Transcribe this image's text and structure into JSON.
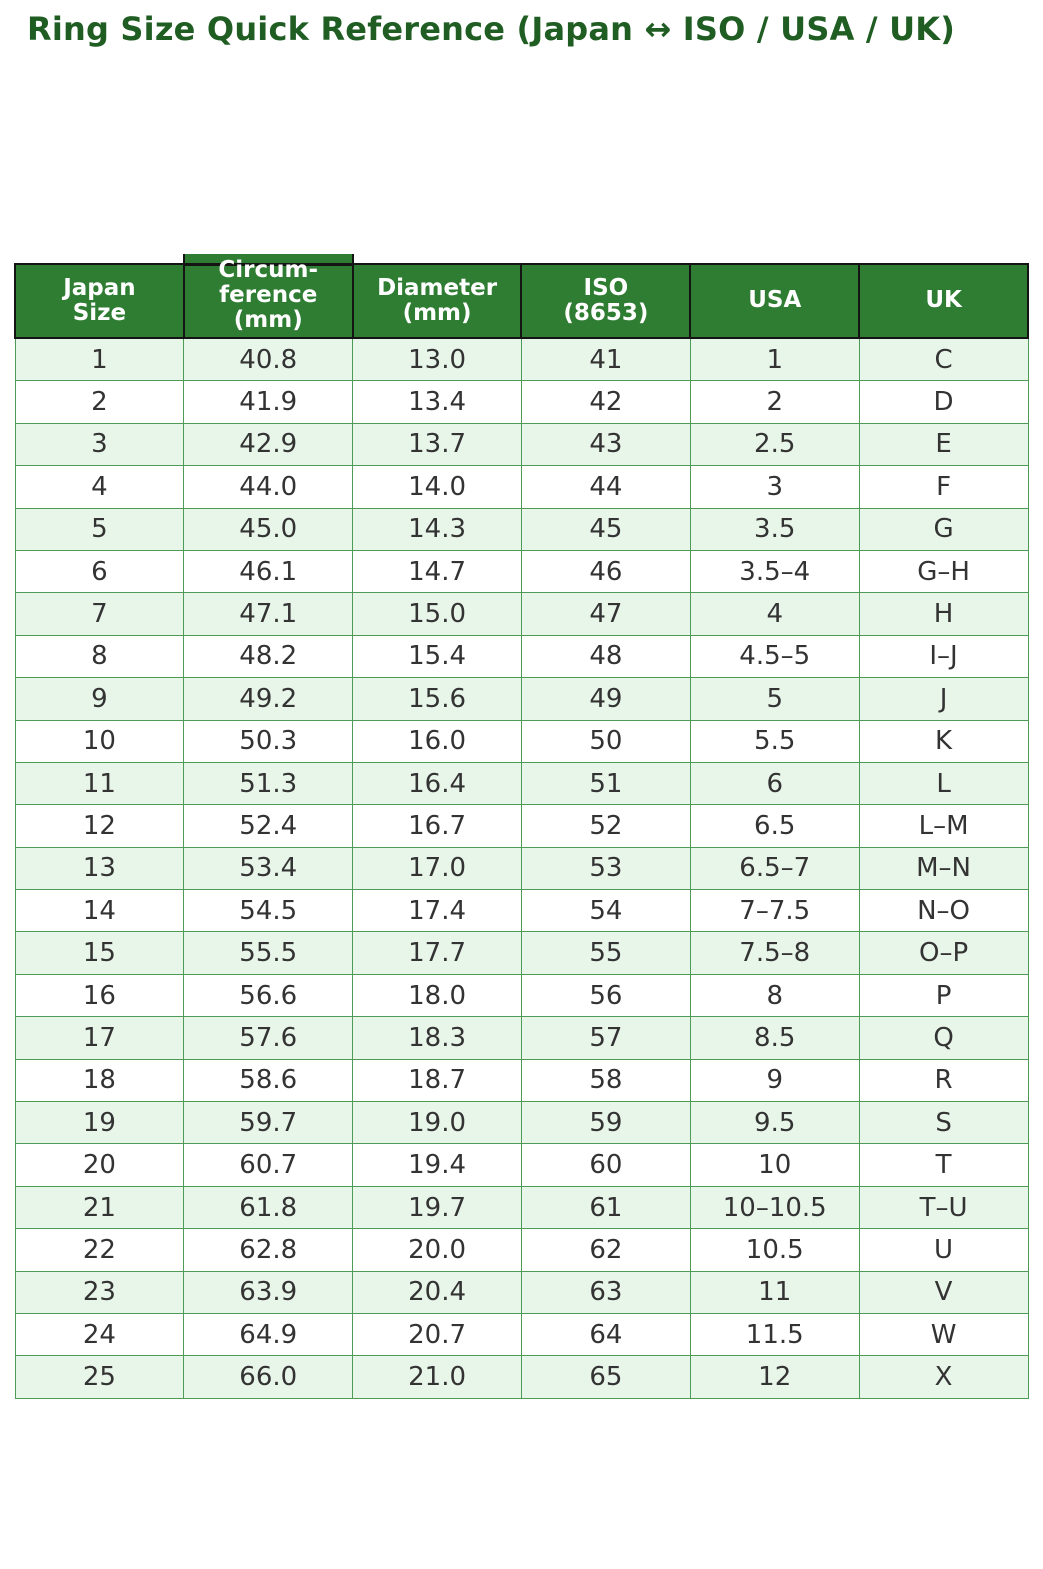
{
  "title": "Ring Size Quick Reference (Japan ↔ ISO / USA / UK)",
  "colors": {
    "title_text": "#1f5d23",
    "header_bg": "#2e7d32",
    "header_text": "#ffffff",
    "header_border": "#141414",
    "row_alt_bg": "#e8f5e9",
    "row_bg": "#ffffff",
    "cell_border": "#4e9b57",
    "cell_text": "#333333"
  },
  "table": {
    "headers": [
      "Japan\nSize",
      "Circum-\nference\n(mm)",
      "Diameter\n(mm)",
      "ISO\n(8653)",
      "USA",
      "UK"
    ],
    "rows": [
      [
        "1",
        "40.8",
        "13.0",
        "41",
        "1",
        "C"
      ],
      [
        "2",
        "41.9",
        "13.4",
        "42",
        "2",
        "D"
      ],
      [
        "3",
        "42.9",
        "13.7",
        "43",
        "2.5",
        "E"
      ],
      [
        "4",
        "44.0",
        "14.0",
        "44",
        "3",
        "F"
      ],
      [
        "5",
        "45.0",
        "14.3",
        "45",
        "3.5",
        "G"
      ],
      [
        "6",
        "46.1",
        "14.7",
        "46",
        "3.5–4",
        "G–H"
      ],
      [
        "7",
        "47.1",
        "15.0",
        "47",
        "4",
        "H"
      ],
      [
        "8",
        "48.2",
        "15.4",
        "48",
        "4.5–5",
        "I–J"
      ],
      [
        "9",
        "49.2",
        "15.6",
        "49",
        "5",
        "J"
      ],
      [
        "10",
        "50.3",
        "16.0",
        "50",
        "5.5",
        "K"
      ],
      [
        "11",
        "51.3",
        "16.4",
        "51",
        "6",
        "L"
      ],
      [
        "12",
        "52.4",
        "16.7",
        "52",
        "6.5",
        "L–M"
      ],
      [
        "13",
        "53.4",
        "17.0",
        "53",
        "6.5–7",
        "M–N"
      ],
      [
        "14",
        "54.5",
        "17.4",
        "54",
        "7–7.5",
        "N–O"
      ],
      [
        "15",
        "55.5",
        "17.7",
        "55",
        "7.5–8",
        "O–P"
      ],
      [
        "16",
        "56.6",
        "18.0",
        "56",
        "8",
        "P"
      ],
      [
        "17",
        "57.6",
        "18.3",
        "57",
        "8.5",
        "Q"
      ],
      [
        "18",
        "58.6",
        "18.7",
        "58",
        "9",
        "R"
      ],
      [
        "19",
        "59.7",
        "19.0",
        "59",
        "9.5",
        "S"
      ],
      [
        "20",
        "60.7",
        "19.4",
        "60",
        "10",
        "T"
      ],
      [
        "21",
        "61.8",
        "19.7",
        "61",
        "10–10.5",
        "T–U"
      ],
      [
        "22",
        "62.8",
        "20.0",
        "62",
        "10.5",
        "U"
      ],
      [
        "23",
        "63.9",
        "20.4",
        "63",
        "11",
        "V"
      ],
      [
        "24",
        "64.9",
        "20.7",
        "64",
        "11.5",
        "W"
      ],
      [
        "25",
        "66.0",
        "21.0",
        "65",
        "12",
        "X"
      ]
    ]
  },
  "chart_data": {
    "type": "table",
    "title": "Ring Size Quick Reference (Japan ↔ ISO / USA / UK)",
    "columns": [
      "Japan Size",
      "Circumference (mm)",
      "Diameter (mm)",
      "ISO (8653)",
      "USA",
      "UK"
    ],
    "rows": [
      [
        "1",
        "40.8",
        "13.0",
        "41",
        "1",
        "C"
      ],
      [
        "2",
        "41.9",
        "13.4",
        "42",
        "2",
        "D"
      ],
      [
        "3",
        "42.9",
        "13.7",
        "43",
        "2.5",
        "E"
      ],
      [
        "4",
        "44.0",
        "14.0",
        "44",
        "3",
        "F"
      ],
      [
        "5",
        "45.0",
        "14.3",
        "45",
        "3.5",
        "G"
      ],
      [
        "6",
        "46.1",
        "14.7",
        "46",
        "3.5–4",
        "G–H"
      ],
      [
        "7",
        "47.1",
        "15.0",
        "47",
        "4",
        "H"
      ],
      [
        "8",
        "48.2",
        "15.4",
        "48",
        "4.5–5",
        "I–J"
      ],
      [
        "9",
        "49.2",
        "15.6",
        "49",
        "5",
        "J"
      ],
      [
        "10",
        "50.3",
        "16.0",
        "50",
        "5.5",
        "K"
      ],
      [
        "11",
        "51.3",
        "16.4",
        "51",
        "6",
        "L"
      ],
      [
        "12",
        "52.4",
        "16.7",
        "52",
        "6.5",
        "L–M"
      ],
      [
        "13",
        "53.4",
        "17.0",
        "53",
        "6.5–7",
        "M–N"
      ],
      [
        "14",
        "54.5",
        "17.4",
        "54",
        "7–7.5",
        "N–O"
      ],
      [
        "15",
        "55.5",
        "17.7",
        "55",
        "7.5–8",
        "O–P"
      ],
      [
        "16",
        "56.6",
        "18.0",
        "56",
        "8",
        "P"
      ],
      [
        "17",
        "57.6",
        "18.3",
        "57",
        "8.5",
        "Q"
      ],
      [
        "18",
        "58.6",
        "18.7",
        "58",
        "9",
        "R"
      ],
      [
        "19",
        "59.7",
        "19.0",
        "59",
        "9.5",
        "S"
      ],
      [
        "20",
        "60.7",
        "19.4",
        "60",
        "10",
        "T"
      ],
      [
        "21",
        "61.8",
        "19.7",
        "61",
        "10–10.5",
        "T–U"
      ],
      [
        "22",
        "62.8",
        "20.0",
        "62",
        "10.5",
        "U"
      ],
      [
        "23",
        "63.9",
        "20.4",
        "63",
        "11",
        "V"
      ],
      [
        "24",
        "64.9",
        "20.7",
        "64",
        "11.5",
        "W"
      ],
      [
        "25",
        "66.0",
        "21.0",
        "65",
        "12",
        "X"
      ]
    ]
  }
}
